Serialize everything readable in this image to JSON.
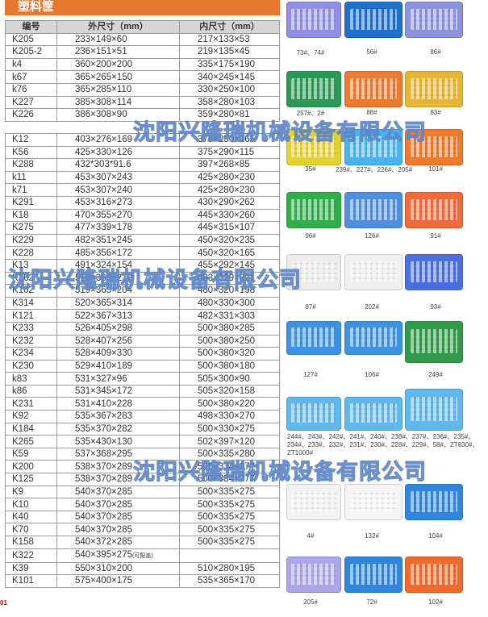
{
  "title": "塑料筐",
  "table": {
    "headers": [
      "编号",
      "外尺寸（mm）",
      "内尺寸（mm）"
    ],
    "block1": [
      [
        "K205",
        "233×149×60",
        "217×133×53"
      ],
      [
        "K205-2",
        "236×151×51",
        "219×135×45"
      ],
      [
        "k4",
        "360×200×200",
        "335×175×190"
      ],
      [
        "k67",
        "365×265×150",
        "340×245×145"
      ],
      [
        "k76",
        "365×285×110",
        "330×250×100"
      ],
      [
        "K227",
        "385×308×114",
        "358×280×103"
      ],
      [
        "K226",
        "386×308×90",
        "359×280×81"
      ]
    ],
    "block2": [
      [
        "K12",
        "403×276×169",
        "375×250×165"
      ],
      [
        "K56",
        "425×330×126",
        "375×290×115"
      ],
      [
        "K288",
        "432*303*91.6",
        "397×268×85"
      ],
      [
        "k11",
        "453×307×243",
        "425×280×230"
      ],
      [
        "k71",
        "453×307×240",
        "425×280×230"
      ],
      [
        "K291",
        "453×316×273",
        "430×290×262"
      ],
      [
        "K18",
        "470×355×270",
        "445×330×260"
      ],
      [
        "K275",
        "477×339×178",
        "445×315×107"
      ],
      [
        "K229",
        "482×351×245",
        "450×320×235"
      ],
      [
        "K228",
        "485×356×172",
        "450×320×165"
      ],
      [
        "K13",
        "491×324×154",
        "455×292×145"
      ],
      [
        "K262",
        "518×363×228",
        "483×329×221"
      ],
      [
        "K102",
        "519×365×204",
        "480×320×198"
      ],
      [
        "K314",
        "520×365×314",
        "480×330×300"
      ],
      [
        "K121",
        "522×367×313",
        "482×331×303"
      ],
      [
        "K233",
        "526×405×298",
        "500×380×285"
      ],
      [
        "K232",
        "528×407×256",
        "500×380×250"
      ],
      [
        "K234",
        "528×409×330",
        "500×380×320"
      ],
      [
        "K230",
        "529×410×189",
        "500×380×180"
      ],
      [
        "k83",
        "531×327×96",
        "505×300×90"
      ],
      [
        "k86",
        "531×345×172",
        "505×320×158"
      ],
      [
        "K231",
        "531×410×228",
        "500×380×220"
      ],
      [
        "K92",
        "535×367×283",
        "498×330×270"
      ],
      [
        "K184",
        "535×370×282",
        "500×330×275"
      ],
      [
        "K265",
        "535×430×130",
        "502×397×120"
      ],
      [
        "K59",
        "537×368×295",
        "500×335×280"
      ],
      [
        "K200",
        "538×370×289",
        "500×334×277"
      ],
      [
        "K125",
        "538×370×289",
        "500×334×277"
      ],
      [
        "K9",
        "540×370×285",
        "500×335×275"
      ],
      [
        "K10",
        "540×370×285",
        "500×335×275"
      ],
      [
        "K40",
        "540×370×285",
        "500×335×275"
      ],
      [
        "K70",
        "540×370×285",
        "500×335×275"
      ],
      [
        "K158",
        "540×372×285",
        "500×335×275"
      ],
      [
        "K322",
        "540×395×275",
        "",
        "(可配盖)"
      ],
      [
        "K39",
        "550×310×200",
        "510×280×195"
      ],
      [
        "K101",
        "575×400×175",
        "535×365×170"
      ]
    ]
  },
  "products": [
    {
      "caption": "73#、74#",
      "color": "#8f8fe6"
    },
    {
      "caption": "56#",
      "color": "#1f6fd1"
    },
    {
      "caption": "86#",
      "color": "#8b92e0"
    },
    {
      "caption": "257#、2#",
      "color": "#2a9a55"
    },
    {
      "caption": "88#",
      "color": "#f07a2c"
    },
    {
      "caption": "83#",
      "color": "#e8b533"
    },
    {
      "caption": "35#",
      "color": "#e3d22f"
    },
    {
      "caption": "239#、227#、226#、205#",
      "color": "#48b3ee"
    },
    {
      "caption": "101#",
      "color": "#f07a2c"
    },
    {
      "caption": "96#",
      "color": "#2fae4a"
    },
    {
      "caption": "126#",
      "color": "#4f8fe0"
    },
    {
      "caption": "91#",
      "color": "#f06a3a"
    },
    {
      "caption": "87#",
      "color": "#ececec"
    },
    {
      "caption": "202#",
      "color": "#f0f0f0"
    },
    {
      "caption": "93#",
      "color": "#4a6fe0"
    },
    {
      "caption": "127#",
      "color": "#3c93e6"
    },
    {
      "caption": "106#",
      "color": "#3c93e6"
    },
    {
      "caption": "249#",
      "color": "#2f9a48"
    },
    {
      "caption": "",
      "color": "#5fb8ee"
    },
    {
      "caption": "",
      "color": "#5fb8ee"
    },
    {
      "caption": "",
      "color": "#5fb8ee"
    },
    {
      "caption": "4#",
      "color": "#f2f2f2"
    },
    {
      "caption": "132#",
      "color": "#f5f5f5"
    },
    {
      "caption": "104#",
      "color": "#2f86e0"
    },
    {
      "caption": "205#",
      "color": "#a9a6ea"
    },
    {
      "caption": "72#",
      "color": "#2f86e0"
    },
    {
      "caption": "102#",
      "color": "#f06a2c"
    }
  ],
  "long_caption": "244#、243#、242#、241#、240#、238#、237#、236#、235#、234#、233#、232#、231#、230#、228#、229#、58#、ZT830#、ZT1000#",
  "watermark": "沈阳兴隆瑞机械设备有限公司",
  "corner_mark": "01"
}
